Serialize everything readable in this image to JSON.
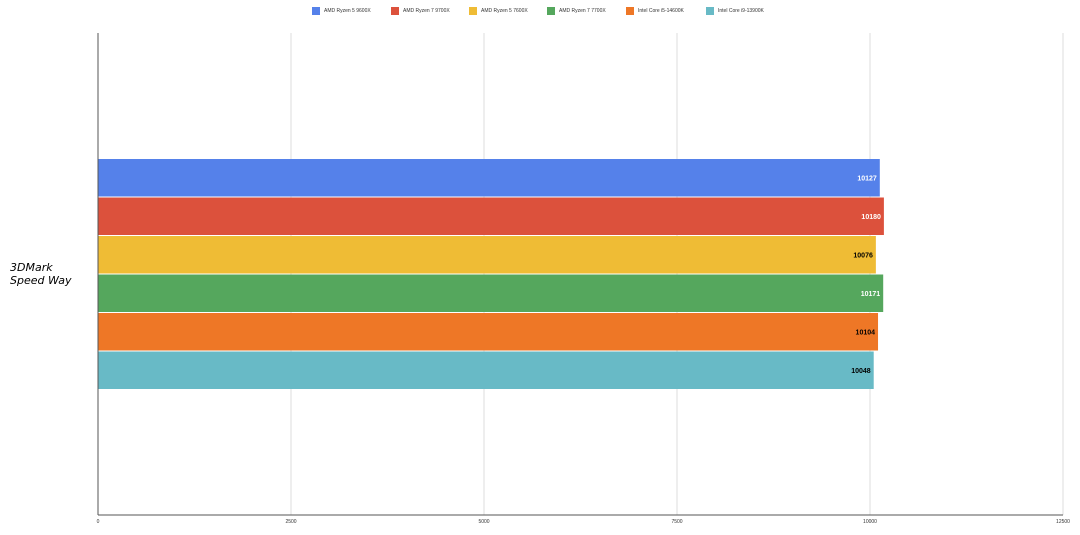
{
  "chart_data": {
    "type": "bar",
    "orientation": "horizontal",
    "categories": [
      "3DMark\nSpeed Way"
    ],
    "category_lines": [
      "3DMark",
      "Speed Way"
    ],
    "series": [
      {
        "name": "AMD Ryzen 5 9600X",
        "values": [
          10127
        ],
        "color": "#5581ea"
      },
      {
        "name": "AMD Ryzen 7 9700X",
        "values": [
          10180
        ],
        "color": "#dc513c"
      },
      {
        "name": "AMD Ryzen 5 7600X",
        "values": [
          10076
        ],
        "color": "#efbc35"
      },
      {
        "name": "AMD Ryzen 7 7700X",
        "values": [
          10171
        ],
        "color": "#55a75d"
      },
      {
        "name": "Intel Core i5-14600K",
        "values": [
          10104
        ],
        "color": "#ee7726"
      },
      {
        "name": "Intel Core i9-13900K",
        "values": [
          10048
        ],
        "color": "#68bac6"
      }
    ],
    "data_label_colors": [
      "#ffffff",
      "#ffffff",
      "#000000",
      "#ffffff",
      "#000000",
      "#000000"
    ],
    "xlim": [
      0,
      12500
    ],
    "xticks": [
      0,
      2500,
      5000,
      7500,
      10000,
      12500
    ],
    "title": "",
    "xlabel": "",
    "ylabel": "",
    "grid": true,
    "legend_position": "top-center"
  }
}
